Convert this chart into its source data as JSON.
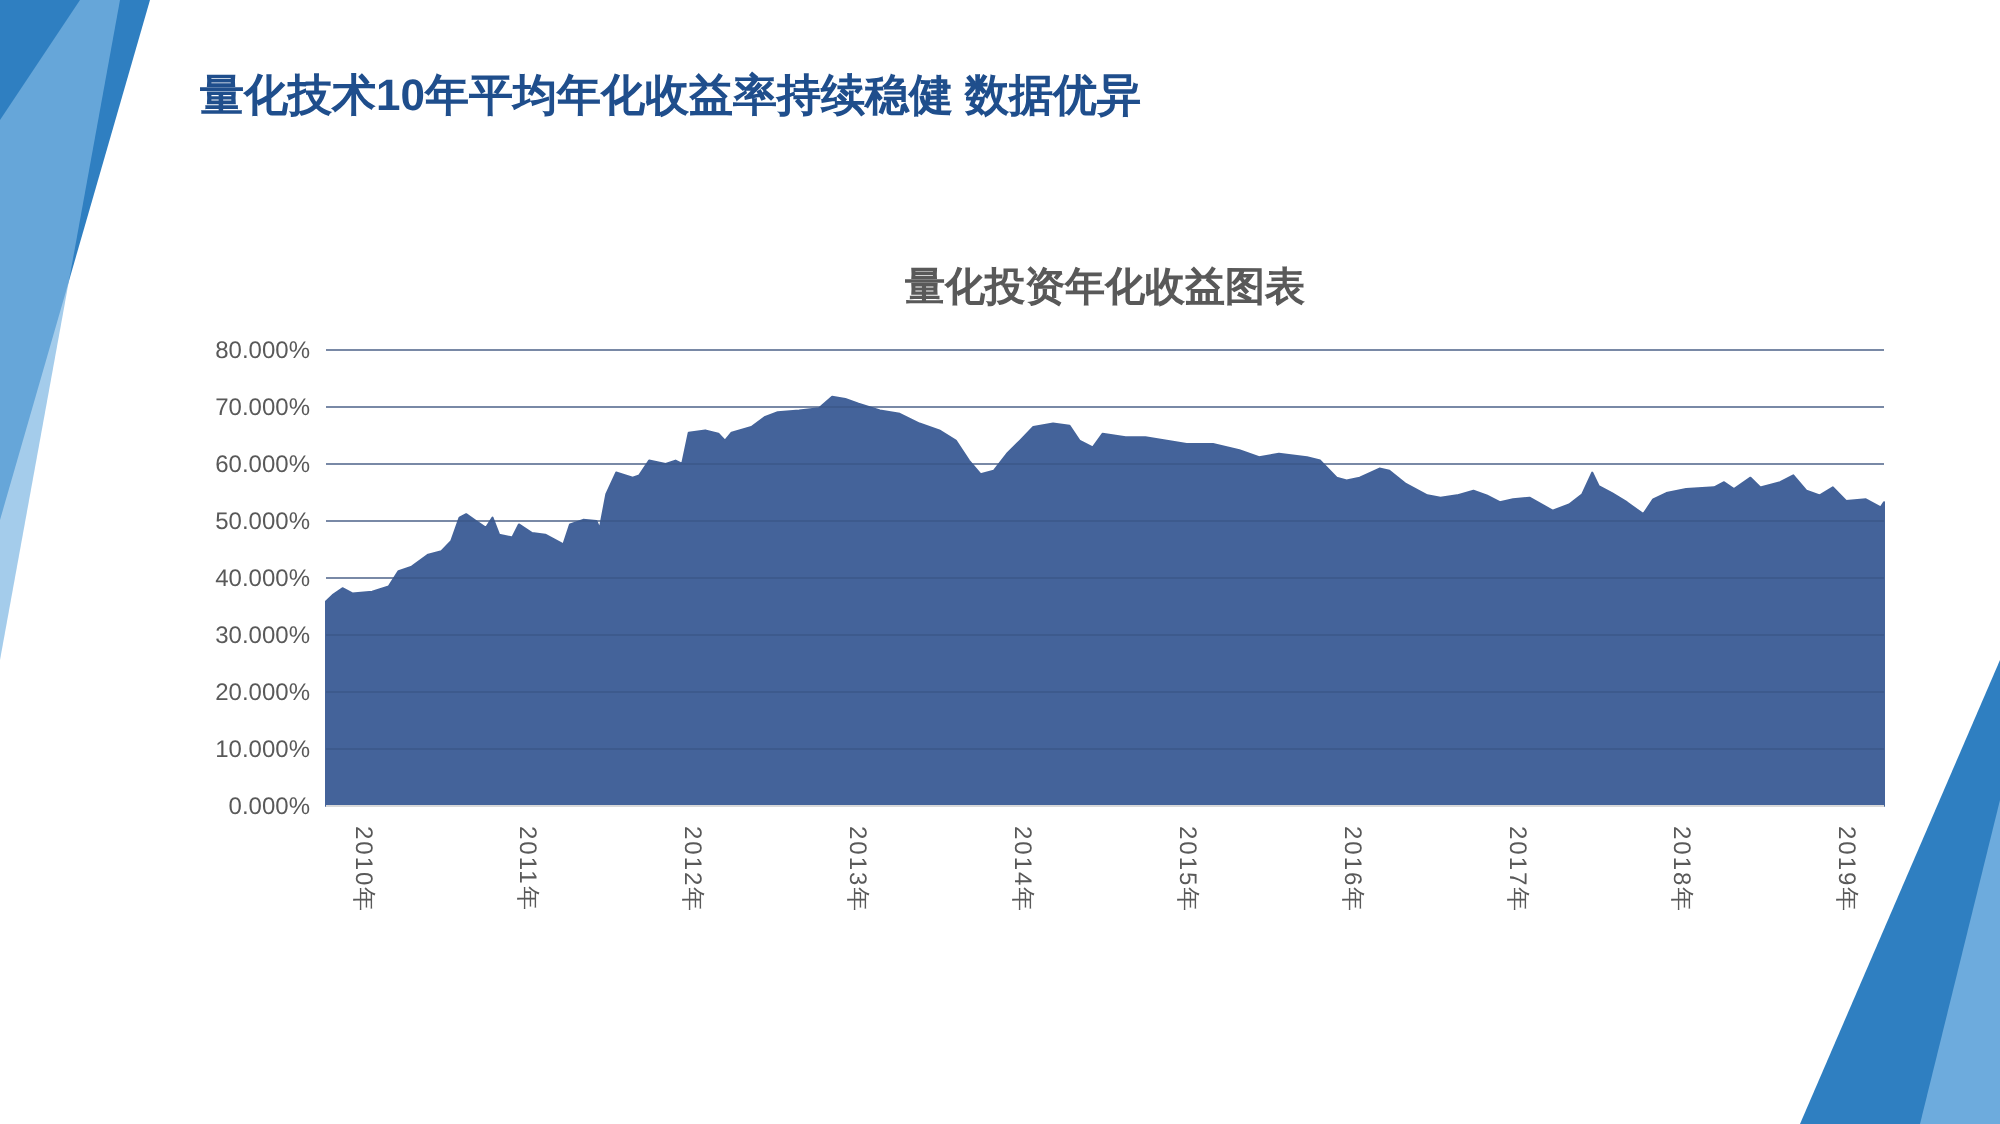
{
  "chart_data": {
    "type": "area",
    "title": "量化技术10年平均年化收益率持续稳健  数据优异",
    "subtitle": "量化投资年化收益图表",
    "series": [
      {
        "color": "#44639a",
        "x": [
          2009.77,
          2009.81,
          2009.87,
          2009.93,
          2010.05,
          2010.15,
          2010.21,
          2010.29,
          2010.39,
          2010.47,
          2010.53,
          2010.58,
          2010.62,
          2010.68,
          2010.74,
          2010.78,
          2010.82,
          2010.9,
          2010.94,
          2011.02,
          2011.1,
          2011.21,
          2011.25,
          2011.33,
          2011.41,
          2011.43,
          2011.47,
          2011.53,
          2011.63,
          2011.67,
          2011.73,
          2011.83,
          2011.89,
          2011.93,
          2011.97,
          2012.07,
          2012.15,
          2012.19,
          2012.23,
          2012.35,
          2012.43,
          2012.51,
          2012.64,
          2012.76,
          2012.84,
          2012.92,
          2013.0,
          2013.13,
          2013.25,
          2013.37,
          2013.49,
          2013.59,
          2013.67,
          2013.74,
          2013.82,
          2013.9,
          2013.98,
          2014.06,
          2014.18,
          2014.28,
          2014.34,
          2014.42,
          2014.48,
          2014.62,
          2014.74,
          2014.87,
          2014.99,
          2015.15,
          2015.31,
          2015.43,
          2015.55,
          2015.72,
          2015.8,
          2015.9,
          2015.96,
          2016.04,
          2016.16,
          2016.22,
          2016.32,
          2016.45,
          2016.53,
          2016.63,
          2016.73,
          2016.81,
          2016.89,
          2016.97,
          2017.07,
          2017.21,
          2017.31,
          2017.39,
          2017.45,
          2017.49,
          2017.57,
          2017.66,
          2017.76,
          2017.82,
          2017.9,
          2018.02,
          2018.19,
          2018.25,
          2018.31,
          2018.41,
          2018.47,
          2018.59,
          2018.67,
          2018.75,
          2018.83,
          2018.91,
          2018.99,
          2019.11,
          2019.2,
          2019.22
        ],
        "values": [
          35.9,
          37,
          38.2,
          37.3,
          37.6,
          38.5,
          41.2,
          42,
          44.1,
          44.7,
          46.5,
          50.6,
          51.2,
          50,
          48.8,
          50.6,
          47.6,
          47.1,
          49.4,
          47.9,
          47.6,
          45.9,
          49.4,
          50.2,
          50,
          48.6,
          54.7,
          58.5,
          57.6,
          58,
          60.6,
          60,
          60.6,
          60,
          65.5,
          65.9,
          65.3,
          64.1,
          65.5,
          66.5,
          68.2,
          69.1,
          69.4,
          69.8,
          71.8,
          71.4,
          70.6,
          69.4,
          68.8,
          67.1,
          65.9,
          64.1,
          60.6,
          58.2,
          58.8,
          61.8,
          64.1,
          66.5,
          67.1,
          66.7,
          64.1,
          62.9,
          65.3,
          64.7,
          64.7,
          64.1,
          63.5,
          63.5,
          62.4,
          61.2,
          61.8,
          61.2,
          60.6,
          57.6,
          57.1,
          57.6,
          59.2,
          58.8,
          56.5,
          54.5,
          54.1,
          54.5,
          55.3,
          54.5,
          53.3,
          53.8,
          54.1,
          51.8,
          52.9,
          54.7,
          58.5,
          56.1,
          54.9,
          53.3,
          51.2,
          53.8,
          54.9,
          55.6,
          55.9,
          56.8,
          55.6,
          57.6,
          55.9,
          56.8,
          58,
          55.3,
          54.5,
          55.9,
          53.5,
          53.8,
          52.4,
          53.3
        ]
      }
    ],
    "xlim": [
      2009.77,
      2019.22
    ],
    "xticks": [
      {
        "value": 2010,
        "label": "2010年"
      },
      {
        "value": 2011,
        "label": "2011年"
      },
      {
        "value": 2012,
        "label": "2012年"
      },
      {
        "value": 2013,
        "label": "2013年"
      },
      {
        "value": 2014,
        "label": "2014年"
      },
      {
        "value": 2015,
        "label": "2015年"
      },
      {
        "value": 2016,
        "label": "2016年"
      },
      {
        "value": 2017,
        "label": "2017年"
      },
      {
        "value": 2018,
        "label": "2018年"
      },
      {
        "value": 2019,
        "label": "2019年"
      }
    ],
    "ylim": [
      0,
      80
    ],
    "yticks": [
      {
        "value": 0,
        "label": "0.000%"
      },
      {
        "value": 10,
        "label": "10.000%"
      },
      {
        "value": 20,
        "label": "20.000%"
      },
      {
        "value": 30,
        "label": "30.000%"
      },
      {
        "value": 40,
        "label": "40.000%"
      },
      {
        "value": 50,
        "label": "50.000%"
      },
      {
        "value": 60,
        "label": "60.000%"
      },
      {
        "value": 70,
        "label": "70.000%"
      },
      {
        "value": 80,
        "label": "80.000%"
      }
    ],
    "grid": "y"
  }
}
